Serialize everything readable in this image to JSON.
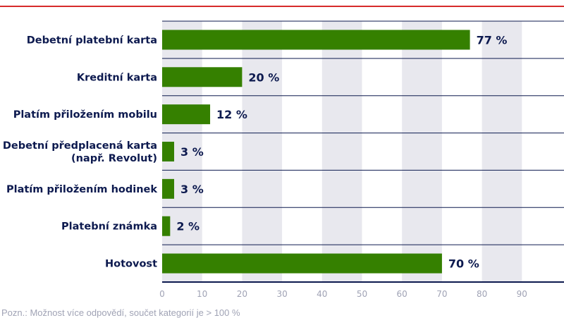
{
  "chart_data": {
    "type": "bar",
    "orientation": "horizontal",
    "categories": [
      "Debetní platební karta",
      "Kreditní karta",
      "Platím přiložením mobilu",
      "Debetní předplacená karta (např. Revolut)",
      "Platím přiložením hodinek",
      "Platební známka",
      "Hotovost"
    ],
    "category_lines": [
      [
        "Debetní platební karta"
      ],
      [
        "Kreditní karta"
      ],
      [
        "Platím přiložením mobilu"
      ],
      [
        "Debetní předplacená karta",
        "(např. Revolut)"
      ],
      [
        "Platím přiložením hodinek"
      ],
      [
        "Platební známka"
      ],
      [
        "Hotovost"
      ]
    ],
    "values": [
      77,
      20,
      12,
      3,
      3,
      2,
      70
    ],
    "value_labels": [
      "77 %",
      "20 %",
      "12 %",
      "3 %",
      "3 %",
      "2 %",
      "70 %"
    ],
    "xlim": [
      0,
      100
    ],
    "xticks": [
      0,
      10,
      20,
      30,
      40,
      50,
      60,
      70,
      80,
      90
    ],
    "grid": "alternating vertical bands",
    "colors": {
      "bar": "#358000",
      "text": "#0d1a4f",
      "band": "#e8e8ee",
      "rule": "#0d1a4f",
      "accent": "#d62b2b",
      "tick": "#a0a3b5"
    }
  },
  "note": "Pozn.: Možnost více odpovědí, součet kategorií je > 100 %"
}
